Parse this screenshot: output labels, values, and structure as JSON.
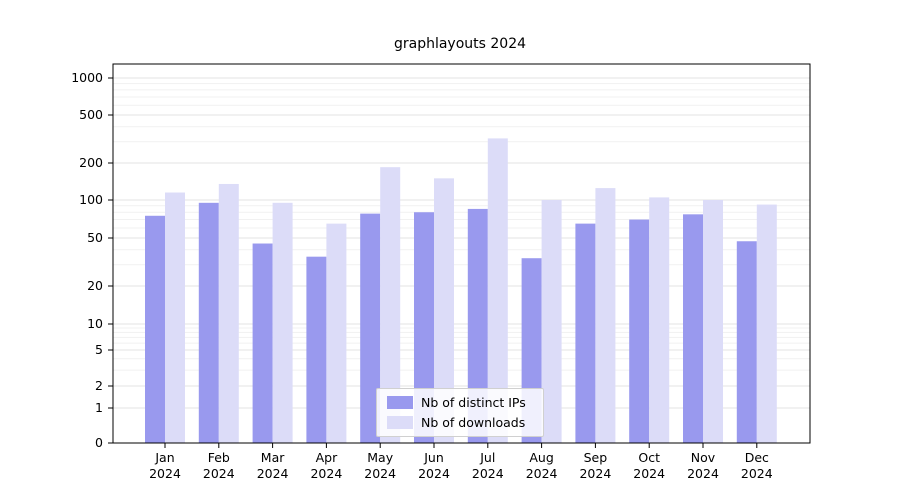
{
  "chart_data": {
    "type": "bar",
    "title": "graphlayouts 2024",
    "categories": [
      "Jan",
      "Feb",
      "Mar",
      "Apr",
      "May",
      "Jun",
      "Jul",
      "Aug",
      "Sep",
      "Oct",
      "Nov",
      "Dec"
    ],
    "category_year": "2024",
    "series": [
      {
        "name": "Nb of distinct IPs",
        "color": "#9999ee",
        "values": [
          75,
          95,
          45,
          35,
          78,
          80,
          85,
          34,
          65,
          70,
          77,
          47
        ]
      },
      {
        "name": "Nb of downloads",
        "color": "#dcdcf8",
        "values": [
          115,
          135,
          95,
          65,
          185,
          150,
          320,
          100,
          125,
          105,
          100,
          92
        ]
      }
    ],
    "ylabel": "",
    "xlabel": "",
    "y_scale": "log-like",
    "y_ticks": [
      0,
      1,
      2,
      5,
      10,
      20,
      50,
      100,
      200,
      500,
      1000
    ],
    "y_minor_ticks": [
      3,
      4,
      6,
      7,
      8,
      9,
      30,
      40,
      60,
      70,
      80,
      90,
      300,
      400,
      600,
      700,
      800,
      900
    ],
    "ylim": [
      0,
      1500
    ],
    "grid": "horizontal",
    "legend_position": "bottom-center-inside",
    "colors": {
      "axis": "#000000",
      "grid_major": "#e3e3e3",
      "grid_minor": "#f1f1f1",
      "text": "#000000",
      "background": "#ffffff"
    }
  }
}
